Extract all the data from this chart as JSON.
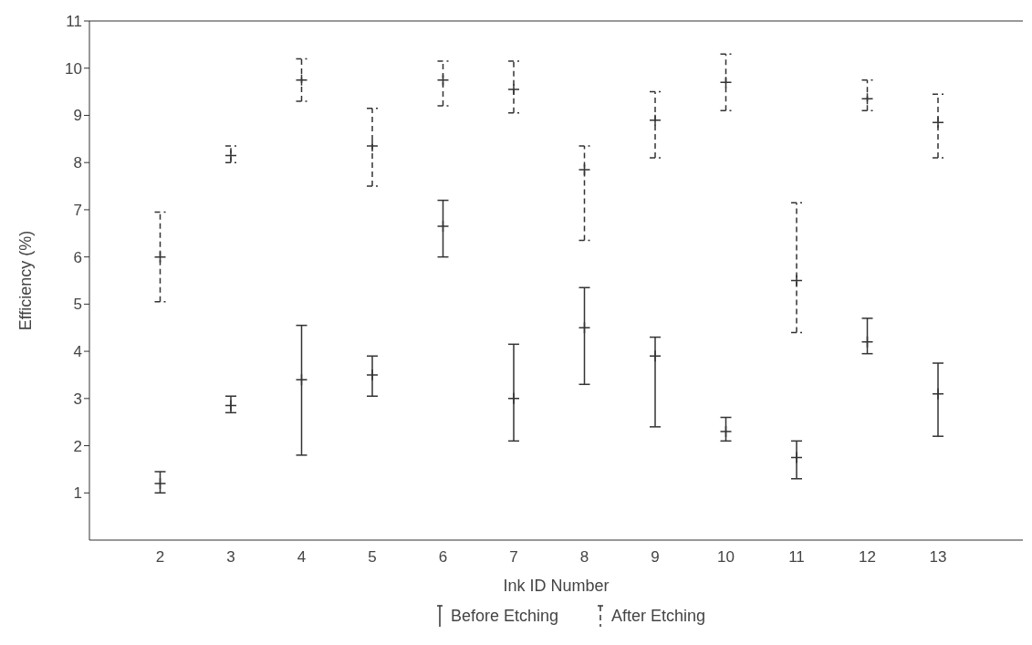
{
  "chart_data": {
    "type": "scatter",
    "xlabel": "Ink ID Number",
    "ylabel": "Efficiency (%)",
    "x": [
      2,
      3,
      4,
      5,
      6,
      7,
      8,
      9,
      10,
      11,
      12,
      13
    ],
    "xlim": [
      1,
      14.2
    ],
    "xticks": [
      2,
      3,
      4,
      5,
      6,
      7,
      8,
      9,
      10,
      11,
      12,
      13
    ],
    "ylim": [
      0,
      11
    ],
    "yticks": [
      1,
      2,
      3,
      4,
      5,
      6,
      7,
      8,
      9,
      10,
      11
    ],
    "grid": false,
    "legend": "bottom",
    "marker": "cross",
    "series": [
      {
        "name": "Before Etching",
        "color": "#333333",
        "line_style": "solid",
        "values": [
          1.2,
          2.85,
          3.4,
          3.5,
          6.65,
          3.0,
          4.5,
          3.9,
          2.3,
          1.75,
          4.2,
          3.1
        ],
        "errors": [
          [
            1.0,
            1.45
          ],
          [
            2.7,
            3.05
          ],
          [
            1.8,
            4.55
          ],
          [
            3.05,
            3.9
          ],
          [
            6.0,
            7.2
          ],
          [
            2.1,
            4.15
          ],
          [
            3.3,
            5.35
          ],
          [
            2.4,
            4.3
          ],
          [
            2.1,
            2.6
          ],
          [
            1.3,
            2.1
          ],
          [
            3.95,
            4.7
          ],
          [
            2.2,
            3.75
          ]
        ]
      },
      {
        "name": "After Etching",
        "color": "#333333",
        "line_style": "dashed",
        "values": [
          6.0,
          8.15,
          9.75,
          8.35,
          9.75,
          9.55,
          7.85,
          8.9,
          9.7,
          5.5,
          9.35,
          8.85
        ],
        "errors": [
          [
            5.05,
            6.95
          ],
          [
            8.0,
            8.35
          ],
          [
            9.3,
            10.2
          ],
          [
            7.5,
            9.15
          ],
          [
            9.2,
            10.15
          ],
          [
            9.05,
            10.15
          ],
          [
            6.35,
            8.35
          ],
          [
            8.1,
            9.5
          ],
          [
            9.1,
            10.3
          ],
          [
            4.4,
            7.15
          ],
          [
            9.1,
            9.75
          ],
          [
            8.1,
            9.45
          ]
        ]
      }
    ]
  }
}
